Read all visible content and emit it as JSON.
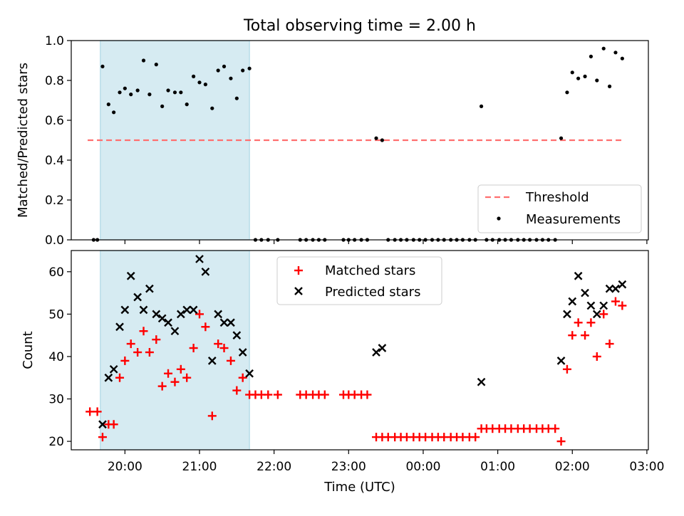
{
  "title": "Total observing time = 2.00 h",
  "xlabel": "Time (UTC)",
  "x_ticks": [
    "20:00",
    "21:00",
    "22:00",
    "23:00",
    "00:00",
    "01:00",
    "02:00",
    "03:00"
  ],
  "x_tick_hours": [
    20,
    21,
    22,
    23,
    24,
    25,
    26,
    27
  ],
  "colors": {
    "shade": "#add8e6",
    "threshold": "#ff6f6f",
    "measurement": "#000000",
    "matched": "#ff0000",
    "predicted": "#000000"
  },
  "chart_data": [
    {
      "type": "scatter",
      "ylabel": "Matched/Predicted stars",
      "xlim_hours": [
        19.28,
        27.02
      ],
      "ylim": [
        0,
        1.0
      ],
      "y_ticks": [
        0.0,
        0.2,
        0.4,
        0.6,
        0.8,
        1.0
      ],
      "y_tick_labels": [
        "0.0",
        "0.2",
        "0.4",
        "0.6",
        "0.8",
        "1.0"
      ],
      "shaded_span_hours": [
        19.67,
        21.67
      ],
      "threshold": {
        "value": 0.5,
        "x_range_hours": [
          19.5,
          26.67
        ]
      },
      "legend": {
        "position": "lower-right",
        "entries": [
          "Threshold",
          "Measurements"
        ]
      },
      "series": [
        {
          "name": "Measurements",
          "points": [
            [
              19.58,
              0
            ],
            [
              19.63,
              0
            ],
            [
              19.7,
              0.87
            ],
            [
              19.78,
              0.68
            ],
            [
              19.85,
              0.64
            ],
            [
              19.93,
              0.74
            ],
            [
              20.0,
              0.76
            ],
            [
              20.08,
              0.73
            ],
            [
              20.17,
              0.75
            ],
            [
              20.25,
              0.9
            ],
            [
              20.33,
              0.73
            ],
            [
              20.42,
              0.88
            ],
            [
              20.5,
              0.67
            ],
            [
              20.58,
              0.75
            ],
            [
              20.67,
              0.74
            ],
            [
              20.75,
              0.74
            ],
            [
              20.83,
              0.68
            ],
            [
              20.92,
              0.82
            ],
            [
              21.0,
              0.79
            ],
            [
              21.08,
              0.78
            ],
            [
              21.17,
              0.66
            ],
            [
              21.25,
              0.85
            ],
            [
              21.33,
              0.87
            ],
            [
              21.42,
              0.81
            ],
            [
              21.5,
              0.71
            ],
            [
              21.58,
              0.85
            ],
            [
              21.67,
              0.86
            ],
            [
              21.75,
              0
            ],
            [
              21.83,
              0
            ],
            [
              21.92,
              0
            ],
            [
              22.05,
              0
            ],
            [
              22.35,
              0
            ],
            [
              22.43,
              0
            ],
            [
              22.52,
              0
            ],
            [
              22.6,
              0
            ],
            [
              22.68,
              0
            ],
            [
              22.93,
              0
            ],
            [
              23.0,
              0
            ],
            [
              23.08,
              0
            ],
            [
              23.17,
              0
            ],
            [
              23.25,
              0
            ],
            [
              23.37,
              0.51
            ],
            [
              23.45,
              0.5
            ],
            [
              23.53,
              0
            ],
            [
              23.62,
              0
            ],
            [
              23.7,
              0
            ],
            [
              23.78,
              0
            ],
            [
              23.87,
              0
            ],
            [
              23.95,
              0
            ],
            [
              24.03,
              0
            ],
            [
              24.12,
              0
            ],
            [
              24.2,
              0
            ],
            [
              24.28,
              0
            ],
            [
              24.37,
              0
            ],
            [
              24.45,
              0
            ],
            [
              24.53,
              0
            ],
            [
              24.62,
              0
            ],
            [
              24.7,
              0
            ],
            [
              24.78,
              0.67
            ],
            [
              24.85,
              0
            ],
            [
              24.93,
              0
            ],
            [
              25.02,
              0
            ],
            [
              25.1,
              0
            ],
            [
              25.18,
              0
            ],
            [
              25.27,
              0
            ],
            [
              25.35,
              0
            ],
            [
              25.43,
              0
            ],
            [
              25.52,
              0
            ],
            [
              25.6,
              0
            ],
            [
              25.68,
              0
            ],
            [
              25.77,
              0
            ],
            [
              25.85,
              0.51
            ],
            [
              25.93,
              0.74
            ],
            [
              26.0,
              0.84
            ],
            [
              26.08,
              0.81
            ],
            [
              26.17,
              0.82
            ],
            [
              26.25,
              0.92
            ],
            [
              26.33,
              0.8
            ],
            [
              26.42,
              0.96
            ],
            [
              26.5,
              0.77
            ],
            [
              26.58,
              0.94
            ],
            [
              26.67,
              0.91
            ]
          ]
        }
      ]
    },
    {
      "type": "scatter",
      "ylabel": "Count",
      "xlim_hours": [
        19.28,
        27.02
      ],
      "ylim": [
        18,
        65
      ],
      "y_ticks": [
        20,
        30,
        40,
        50,
        60
      ],
      "y_tick_labels": [
        "20",
        "30",
        "40",
        "50",
        "60"
      ],
      "shaded_span_hours": [
        19.67,
        21.67
      ],
      "legend": {
        "position": "top-center",
        "entries": [
          "Matched stars",
          "Predicted stars"
        ]
      },
      "series": [
        {
          "name": "Matched stars",
          "marker": "plus",
          "points": [
            [
              19.53,
              27
            ],
            [
              19.63,
              27
            ],
            [
              19.7,
              21
            ],
            [
              19.78,
              24
            ],
            [
              19.85,
              24
            ],
            [
              19.93,
              35
            ],
            [
              20.0,
              39
            ],
            [
              20.08,
              43
            ],
            [
              20.17,
              41
            ],
            [
              20.25,
              46
            ],
            [
              20.33,
              41
            ],
            [
              20.42,
              44
            ],
            [
              20.5,
              33
            ],
            [
              20.58,
              36
            ],
            [
              20.67,
              34
            ],
            [
              20.75,
              37
            ],
            [
              20.83,
              35
            ],
            [
              20.92,
              42
            ],
            [
              21.0,
              50
            ],
            [
              21.08,
              47
            ],
            [
              21.17,
              26
            ],
            [
              21.25,
              43
            ],
            [
              21.33,
              42
            ],
            [
              21.42,
              39
            ],
            [
              21.5,
              32
            ],
            [
              21.58,
              35
            ],
            [
              21.67,
              31
            ],
            [
              21.75,
              31
            ],
            [
              21.83,
              31
            ],
            [
              21.92,
              31
            ],
            [
              22.05,
              31
            ],
            [
              22.35,
              31
            ],
            [
              22.43,
              31
            ],
            [
              22.52,
              31
            ],
            [
              22.6,
              31
            ],
            [
              22.68,
              31
            ],
            [
              22.93,
              31
            ],
            [
              23.0,
              31
            ],
            [
              23.08,
              31
            ],
            [
              23.17,
              31
            ],
            [
              23.25,
              31
            ],
            [
              23.37,
              21
            ],
            [
              23.45,
              21
            ],
            [
              23.53,
              21
            ],
            [
              23.62,
              21
            ],
            [
              23.7,
              21
            ],
            [
              23.78,
              21
            ],
            [
              23.87,
              21
            ],
            [
              23.95,
              21
            ],
            [
              24.03,
              21
            ],
            [
              24.12,
              21
            ],
            [
              24.2,
              21
            ],
            [
              24.28,
              21
            ],
            [
              24.37,
              21
            ],
            [
              24.45,
              21
            ],
            [
              24.53,
              21
            ],
            [
              24.62,
              21
            ],
            [
              24.7,
              21
            ],
            [
              24.78,
              23
            ],
            [
              24.85,
              23
            ],
            [
              24.93,
              23
            ],
            [
              25.02,
              23
            ],
            [
              25.1,
              23
            ],
            [
              25.18,
              23
            ],
            [
              25.27,
              23
            ],
            [
              25.35,
              23
            ],
            [
              25.43,
              23
            ],
            [
              25.52,
              23
            ],
            [
              25.6,
              23
            ],
            [
              25.68,
              23
            ],
            [
              25.77,
              23
            ],
            [
              25.85,
              20
            ],
            [
              25.93,
              37
            ],
            [
              26.0,
              45
            ],
            [
              26.08,
              48
            ],
            [
              26.17,
              45
            ],
            [
              26.25,
              48
            ],
            [
              26.33,
              40
            ],
            [
              26.42,
              50
            ],
            [
              26.5,
              43
            ],
            [
              26.58,
              53
            ],
            [
              26.67,
              52
            ]
          ]
        },
        {
          "name": "Predicted stars",
          "marker": "x",
          "points": [
            [
              19.7,
              24
            ],
            [
              19.78,
              35
            ],
            [
              19.85,
              37
            ],
            [
              19.93,
              47
            ],
            [
              20.0,
              51
            ],
            [
              20.08,
              59
            ],
            [
              20.17,
              54
            ],
            [
              20.25,
              51
            ],
            [
              20.33,
              56
            ],
            [
              20.42,
              50
            ],
            [
              20.5,
              49
            ],
            [
              20.58,
              48
            ],
            [
              20.67,
              46
            ],
            [
              20.75,
              50
            ],
            [
              20.83,
              51
            ],
            [
              20.92,
              51
            ],
            [
              21.0,
              63
            ],
            [
              21.08,
              60
            ],
            [
              21.17,
              39
            ],
            [
              21.25,
              50
            ],
            [
              21.33,
              48
            ],
            [
              21.42,
              48
            ],
            [
              21.5,
              45
            ],
            [
              21.58,
              41
            ],
            [
              21.67,
              36
            ],
            [
              23.37,
              41
            ],
            [
              23.45,
              42
            ],
            [
              24.78,
              34
            ],
            [
              25.85,
              39
            ],
            [
              25.93,
              50
            ],
            [
              26.0,
              53
            ],
            [
              26.08,
              59
            ],
            [
              26.17,
              55
            ],
            [
              26.25,
              52
            ],
            [
              26.33,
              50
            ],
            [
              26.42,
              52
            ],
            [
              26.5,
              56
            ],
            [
              26.58,
              56
            ],
            [
              26.67,
              57
            ]
          ]
        }
      ]
    }
  ]
}
